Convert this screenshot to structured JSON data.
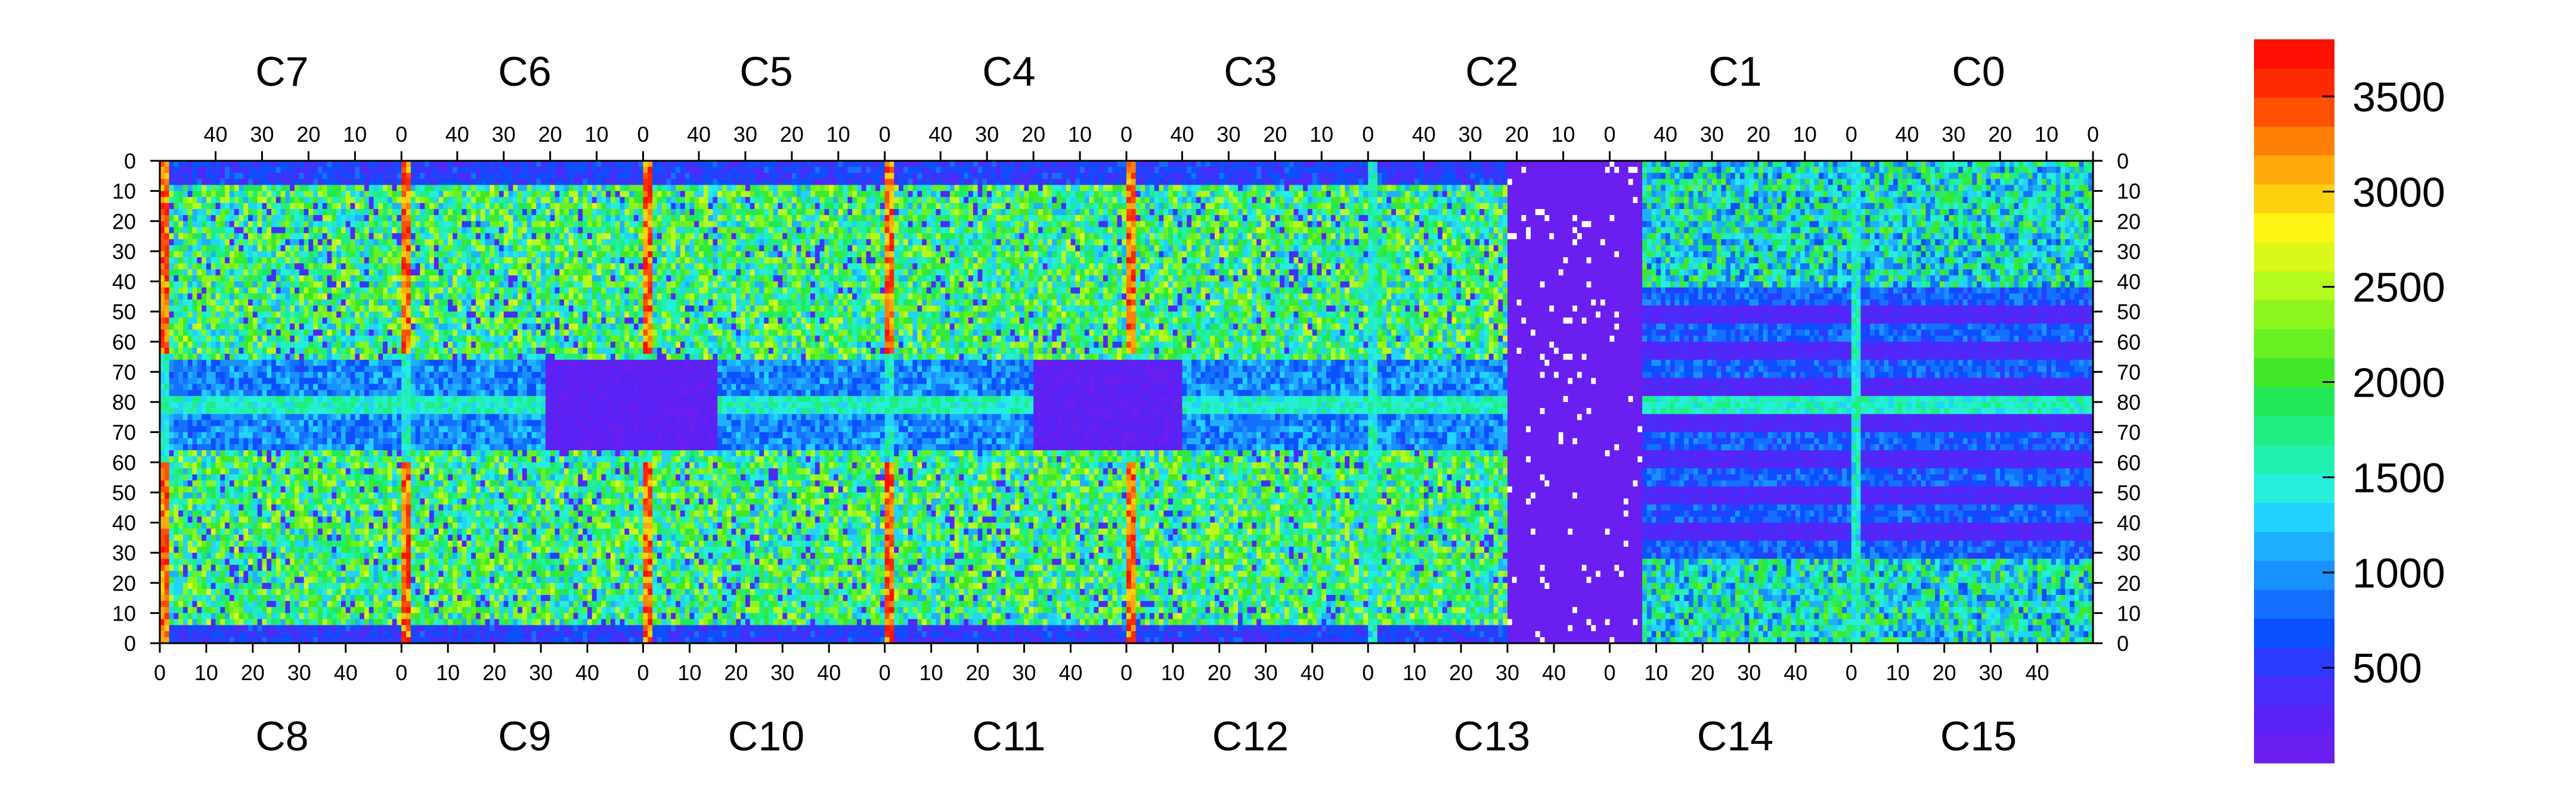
{
  "chart_data": {
    "type": "heatmap",
    "title": "",
    "xlabel": "",
    "ylabel": "",
    "top_chip_labels": [
      "C7",
      "C6",
      "C5",
      "C4",
      "C3",
      "C2",
      "C1",
      "C0"
    ],
    "bottom_chip_labels": [
      "C8",
      "C9",
      "C10",
      "C11",
      "C12",
      "C13",
      "C14",
      "C15"
    ],
    "top_x_ticks": [
      "40",
      "30",
      "20",
      "10",
      "0"
    ],
    "bottom_x_ticks": [
      "0",
      "10",
      "20",
      "30",
      "40"
    ],
    "y_ticks": [
      "0",
      "10",
      "20",
      "30",
      "40",
      "50",
      "60",
      "70",
      "80",
      "70",
      "60",
      "50",
      "40",
      "30",
      "20",
      "10",
      "0"
    ],
    "chip_columns": 52,
    "rows_per_half": 80,
    "colorbar": {
      "range": [
        0,
        3800
      ],
      "ticks": [
        "500",
        "1000",
        "1500",
        "2000",
        "2500",
        "3000",
        "3500"
      ],
      "tick_values": [
        500,
        1000,
        1500,
        2000,
        2500,
        3000,
        3500
      ]
    },
    "palette": [
      "#6a1ef0",
      "#5a22f5",
      "#4a2cfa",
      "#2a3cff",
      "#0a50ff",
      "#1470ff",
      "#1a90ff",
      "#1eb0ff",
      "#22d2ff",
      "#26eedc",
      "#22f0b0",
      "#20ee80",
      "#22e858",
      "#40e828",
      "#68f022",
      "#8cf51e",
      "#b4fa1e",
      "#dcf81a",
      "#fff514",
      "#ffd00e",
      "#ffaa0a",
      "#ff8006",
      "#ff5004",
      "#ff2a02",
      "#ff1000"
    ],
    "hot_columns": [
      "C7 x=0 (top)",
      "C6 x=0 (top)",
      "C4 x=0 (top)",
      "C3 x=0 (top)",
      "C8 x=52 (bottom)",
      "C9 x=52 (bottom)",
      "C10 x=52 (bottom)",
      "C11 x=52 (bottom)"
    ],
    "dead_regions": [
      {
        "name": "C13/C2 low-gain region",
        "approx_value": 50,
        "note": "scattered white (no-data) pixels"
      },
      {
        "name": "C5/C10 central block",
        "approx_value": 100
      },
      {
        "name": "C11/C12 central block",
        "approx_value": 100
      }
    ],
    "typical_value_range": [
      700,
      2600
    ],
    "hot_value_range": [
      3000,
      3800
    ]
  }
}
